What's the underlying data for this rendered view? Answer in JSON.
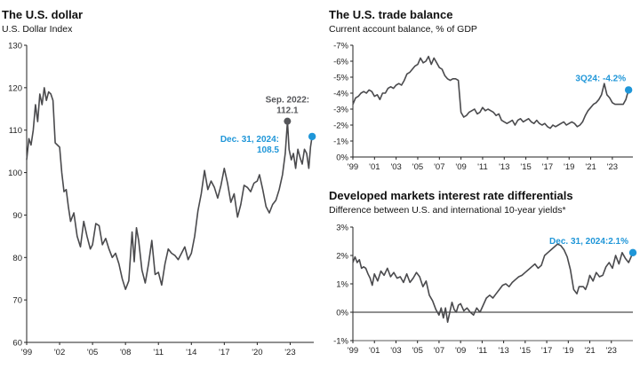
{
  "chart_data": [
    {
      "type": "line",
      "title": "The U.S. dollar",
      "subtitle": "U.S. Dollar Index",
      "ylim": [
        60,
        130
      ],
      "yticks": [
        130,
        120,
        110,
        100,
        90,
        80,
        70,
        60
      ],
      "xlim": [
        1999.0,
        2025.15
      ],
      "xtick_labels": [
        "'99",
        "'02",
        "'05",
        "'08",
        "'11",
        "'14",
        "'17",
        "'20",
        "'23"
      ],
      "xtick_values": [
        1999,
        2002,
        2005,
        2008,
        2011,
        2014,
        2017,
        2020,
        2023
      ],
      "series_color": "#4a4a4d",
      "highlight_color": "#1f96d8",
      "marker_grey": "#55565a",
      "x": [
        1999.0,
        1999.2,
        1999.4,
        1999.6,
        1999.8,
        2000.0,
        2000.2,
        2000.4,
        2000.6,
        2000.8,
        2001.0,
        2001.2,
        2001.4,
        2001.6,
        2001.8,
        2002.0,
        2002.2,
        2002.4,
        2002.6,
        2002.8,
        2003.0,
        2003.3,
        2003.6,
        2003.9,
        2004.2,
        2004.5,
        2004.8,
        2005.0,
        2005.3,
        2005.6,
        2005.9,
        2006.2,
        2006.5,
        2006.8,
        2007.1,
        2007.4,
        2007.7,
        2008.0,
        2008.3,
        2008.6,
        2008.8,
        2009.0,
        2009.2,
        2009.5,
        2009.8,
        2010.1,
        2010.4,
        2010.7,
        2011.0,
        2011.3,
        2011.6,
        2011.9,
        2012.2,
        2012.5,
        2012.8,
        2013.1,
        2013.4,
        2013.7,
        2014.0,
        2014.3,
        2014.6,
        2014.9,
        2015.2,
        2015.5,
        2015.8,
        2016.1,
        2016.4,
        2016.7,
        2017.0,
        2017.3,
        2017.6,
        2017.9,
        2018.2,
        2018.5,
        2018.8,
        2019.1,
        2019.4,
        2019.7,
        2020.0,
        2020.2,
        2020.5,
        2020.8,
        2021.1,
        2021.4,
        2021.7,
        2022.0,
        2022.3,
        2022.55,
        2022.75,
        2022.9,
        2023.1,
        2023.3,
        2023.5,
        2023.7,
        2023.9,
        2024.1,
        2024.3,
        2024.5,
        2024.7,
        2024.85,
        2025.0
      ],
      "values": [
        103.0,
        108.0,
        106.5,
        110.0,
        116.0,
        112.0,
        118.5,
        116.0,
        120.0,
        117.0,
        119.0,
        118.5,
        117.0,
        107.0,
        106.5,
        106.0,
        100.0,
        95.5,
        96.0,
        92.0,
        88.5,
        90.5,
        85.0,
        82.5,
        88.5,
        85.0,
        82.0,
        83.0,
        88.0,
        87.5,
        83.0,
        84.5,
        82.0,
        80.0,
        81.0,
        78.5,
        75.0,
        72.5,
        74.5,
        86.0,
        79.0,
        87.0,
        84.0,
        77.0,
        74.0,
        78.5,
        84.0,
        76.0,
        76.5,
        73.5,
        78.5,
        82.0,
        81.0,
        80.5,
        79.5,
        81.0,
        82.5,
        79.5,
        81.0,
        85.0,
        91.0,
        95.0,
        100.5,
        96.0,
        98.0,
        96.5,
        94.0,
        97.0,
        101.0,
        97.5,
        93.0,
        95.0,
        89.5,
        92.5,
        97.0,
        96.5,
        95.5,
        97.5,
        98.0,
        99.5,
        96.0,
        92.0,
        90.5,
        92.5,
        93.5,
        96.0,
        99.5,
        104.5,
        112.1,
        105.5,
        103.0,
        104.5,
        101.0,
        105.5,
        103.5,
        102.0,
        105.5,
        104.5,
        101.0,
        106.0,
        108.5
      ],
      "annotations": [
        {
          "label": "Sep. 2022:",
          "value_text": "112.1",
          "x": 2022.75,
          "y": 112.1
        },
        {
          "label": "Dec. 31, 2024:",
          "value_text": "108.5",
          "x": 2025.0,
          "y": 108.5
        }
      ]
    },
    {
      "type": "line",
      "title": "The U.S. trade balance",
      "subtitle": "Current account balance, % of GDP",
      "ylim": [
        0,
        -7
      ],
      "inverted_axis": true,
      "yticks": [
        -7,
        -6,
        -5,
        -4,
        -3,
        -2,
        -1,
        0
      ],
      "ytick_labels": [
        "-7%",
        "-6%",
        "-5%",
        "-4%",
        "-3%",
        "-2%",
        "-1%",
        "0%"
      ],
      "xlim": [
        1999.0,
        2024.9
      ],
      "xtick_labels": [
        "'99",
        "'01",
        "'03",
        "'05",
        "'07",
        "'09",
        "'11",
        "'13",
        "'15",
        "'17",
        "'19",
        "'21",
        "'23"
      ],
      "xtick_values": [
        1999,
        2001,
        2003,
        2005,
        2007,
        2009,
        2011,
        2013,
        2015,
        2017,
        2019,
        2021,
        2023
      ],
      "x": [
        1999.0,
        1999.25,
        1999.5,
        1999.75,
        2000.0,
        2000.25,
        2000.5,
        2000.75,
        2001.0,
        2001.25,
        2001.5,
        2001.75,
        2002.0,
        2002.25,
        2002.5,
        2002.75,
        2003.0,
        2003.25,
        2003.5,
        2003.75,
        2004.0,
        2004.25,
        2004.5,
        2004.75,
        2005.0,
        2005.25,
        2005.5,
        2005.75,
        2006.0,
        2006.25,
        2006.5,
        2006.75,
        2007.0,
        2007.25,
        2007.5,
        2007.75,
        2008.0,
        2008.25,
        2008.5,
        2008.75,
        2009.0,
        2009.25,
        2009.5,
        2009.75,
        2010.0,
        2010.25,
        2010.5,
        2010.75,
        2011.0,
        2011.25,
        2011.5,
        2011.75,
        2012.0,
        2012.25,
        2012.5,
        2012.75,
        2013.0,
        2013.25,
        2013.5,
        2013.75,
        2014.0,
        2014.25,
        2014.5,
        2014.75,
        2015.0,
        2015.25,
        2015.5,
        2015.75,
        2016.0,
        2016.25,
        2016.5,
        2016.75,
        2017.0,
        2017.25,
        2017.5,
        2017.75,
        2018.0,
        2018.25,
        2018.5,
        2018.75,
        2019.0,
        2019.25,
        2019.5,
        2019.75,
        2020.0,
        2020.25,
        2020.5,
        2020.75,
        2021.0,
        2021.25,
        2021.5,
        2021.75,
        2022.0,
        2022.25,
        2022.5,
        2022.75,
        2023.0,
        2023.25,
        2023.5,
        2023.75,
        2024.0,
        2024.25,
        2024.5
      ],
      "values": [
        -3.3,
        -3.7,
        -3.8,
        -4.0,
        -4.1,
        -4.0,
        -4.2,
        -4.1,
        -3.8,
        -3.9,
        -3.6,
        -4.0,
        -4.0,
        -4.3,
        -4.4,
        -4.3,
        -4.5,
        -4.6,
        -4.5,
        -4.8,
        -5.2,
        -5.3,
        -5.5,
        -5.7,
        -5.8,
        -6.2,
        -5.9,
        -6.0,
        -6.3,
        -5.8,
        -6.2,
        -5.9,
        -5.6,
        -5.5,
        -5.1,
        -4.9,
        -4.8,
        -4.9,
        -4.9,
        -4.8,
        -2.8,
        -2.5,
        -2.6,
        -2.8,
        -2.9,
        -3.0,
        -2.7,
        -2.8,
        -3.1,
        -2.9,
        -3.0,
        -2.9,
        -2.8,
        -2.6,
        -2.7,
        -2.3,
        -2.2,
        -2.1,
        -2.2,
        -2.3,
        -2.0,
        -2.3,
        -2.4,
        -2.2,
        -2.3,
        -2.4,
        -2.2,
        -2.1,
        -2.3,
        -2.1,
        -2.0,
        -2.1,
        -1.9,
        -1.8,
        -2.0,
        -1.9,
        -2.0,
        -2.1,
        -2.2,
        -2.0,
        -2.1,
        -2.2,
        -2.1,
        -1.9,
        -2.0,
        -2.2,
        -2.6,
        -2.9,
        -3.1,
        -3.3,
        -3.4,
        -3.6,
        -3.9,
        -4.6,
        -3.9,
        -3.7,
        -3.4,
        -3.3,
        -3.3,
        -3.3,
        -3.3,
        -3.6,
        -4.2
      ],
      "annotation": {
        "label": "3Q24: -4.2%",
        "x": 2024.5,
        "y": -4.2
      }
    },
    {
      "type": "line",
      "title": "Developed markets interest rate differentials",
      "subtitle": "Difference between U.S. and international 10-year yields*",
      "ylim": [
        -1,
        3
      ],
      "yticks": [
        3,
        2,
        1,
        0,
        -1
      ],
      "ytick_labels": [
        "3%",
        "2%",
        "1%",
        "0%",
        "-1%"
      ],
      "xlim": [
        1999.0,
        2025.0
      ],
      "xtick_labels": [
        "'99",
        "'01",
        "'03",
        "'05",
        "'07",
        "'09",
        "'11",
        "'13",
        "'15",
        "'17",
        "'19",
        "'21",
        "'23"
      ],
      "xtick_values": [
        1999,
        2001,
        2003,
        2005,
        2007,
        2009,
        2011,
        2013,
        2015,
        2017,
        2019,
        2021,
        2023
      ],
      "x": [
        1999.0,
        1999.2,
        1999.4,
        1999.6,
        1999.8,
        2000.0,
        2000.2,
        2000.4,
        2000.6,
        2000.8,
        2001.0,
        2001.3,
        2001.6,
        2001.9,
        2002.2,
        2002.5,
        2002.8,
        2003.1,
        2003.4,
        2003.7,
        2004.0,
        2004.3,
        2004.6,
        2004.9,
        2005.2,
        2005.5,
        2005.8,
        2006.1,
        2006.4,
        2006.7,
        2007.0,
        2007.2,
        2007.4,
        2007.6,
        2007.8,
        2008.0,
        2008.2,
        2008.4,
        2008.6,
        2008.8,
        2009.0,
        2009.3,
        2009.6,
        2009.9,
        2010.2,
        2010.5,
        2010.8,
        2011.1,
        2011.4,
        2011.7,
        2012.0,
        2012.3,
        2012.6,
        2012.9,
        2013.2,
        2013.5,
        2013.8,
        2014.1,
        2014.4,
        2014.7,
        2015.0,
        2015.3,
        2015.6,
        2015.9,
        2016.2,
        2016.5,
        2016.8,
        2017.1,
        2017.4,
        2017.7,
        2018.0,
        2018.3,
        2018.6,
        2018.9,
        2019.2,
        2019.5,
        2019.8,
        2020.0,
        2020.2,
        2020.4,
        2020.6,
        2020.8,
        2021.0,
        2021.3,
        2021.6,
        2021.9,
        2022.2,
        2022.5,
        2022.8,
        2023.1,
        2023.4,
        2023.7,
        2024.0,
        2024.3,
        2024.6,
        2025.0
      ],
      "values": [
        1.75,
        1.95,
        1.75,
        1.85,
        1.55,
        1.6,
        1.55,
        1.35,
        1.2,
        0.95,
        1.35,
        1.1,
        1.45,
        1.3,
        1.55,
        1.25,
        1.4,
        1.2,
        1.25,
        1.05,
        1.35,
        1.05,
        1.2,
        1.4,
        1.25,
        0.9,
        1.1,
        0.6,
        0.4,
        0.1,
        -0.1,
        0.15,
        -0.2,
        0.15,
        -0.35,
        0.0,
        0.35,
        0.1,
        0.0,
        0.25,
        0.3,
        0.05,
        0.15,
        0.0,
        -0.1,
        0.15,
        0.0,
        0.25,
        0.5,
        0.6,
        0.5,
        0.65,
        0.8,
        0.95,
        1.0,
        0.9,
        1.05,
        1.15,
        1.25,
        1.3,
        1.4,
        1.5,
        1.6,
        1.7,
        1.55,
        1.65,
        2.0,
        2.1,
        2.2,
        2.3,
        2.4,
        2.35,
        2.2,
        1.95,
        1.5,
        0.8,
        0.65,
        0.9,
        0.9,
        0.9,
        0.8,
        1.0,
        1.3,
        1.1,
        1.4,
        1.25,
        1.3,
        1.6,
        1.75,
        1.55,
        2.0,
        1.7,
        2.1,
        1.9,
        1.75,
        2.1
      ],
      "annotation": {
        "label": "Dec. 31, 2024:2.1%",
        "x": 2025.0,
        "y": 2.1
      }
    }
  ]
}
